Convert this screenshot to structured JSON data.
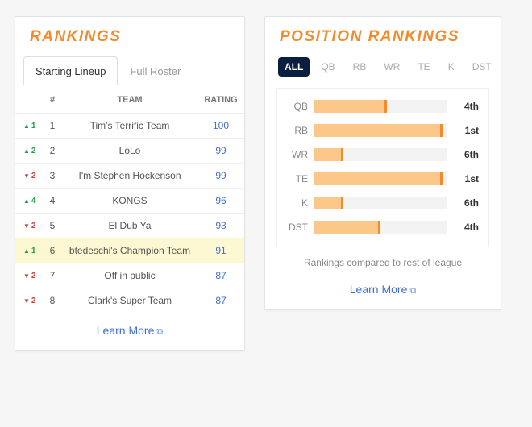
{
  "colors": {
    "accent_orange": "#f28b2b",
    "accent_orange_dark": "#e06a00",
    "link_blue": "#3f6fd8",
    "bar_fill": "#fbc88a",
    "bar_edge": "#f28b2b",
    "highlight_row": "#fdf8d2",
    "pos_active_bg": "#0a1e3f",
    "delta_up": "#1e9e4a",
    "delta_down": "#d23d3d"
  },
  "left": {
    "title": "RANKINGS",
    "tabs": [
      {
        "id": "starting",
        "label": "Starting Lineup",
        "active": true
      },
      {
        "id": "full",
        "label": "Full Roster",
        "active": false
      }
    ],
    "columns": {
      "rank": "#",
      "team": "TEAM",
      "rating": "RATING"
    },
    "rows": [
      {
        "dir": "up",
        "delta": "1",
        "rank": "1",
        "team": "Tim's Terrific Team",
        "rating": "100",
        "highlight": false
      },
      {
        "dir": "up",
        "delta": "2",
        "rank": "2",
        "team": "LoLo",
        "rating": "99",
        "highlight": false
      },
      {
        "dir": "down",
        "delta": "2",
        "rank": "3",
        "team": "I'm Stephen Hockenson",
        "rating": "99",
        "highlight": false
      },
      {
        "dir": "up",
        "delta": "4",
        "rank": "4",
        "team": "KONGS",
        "rating": "96",
        "highlight": false
      },
      {
        "dir": "down",
        "delta": "2",
        "rank": "5",
        "team": "El Dub Ya",
        "rating": "93",
        "highlight": false
      },
      {
        "dir": "up",
        "delta": "1",
        "rank": "6",
        "team": "btedeschi's Champion Team",
        "rating": "91",
        "highlight": true
      },
      {
        "dir": "down",
        "delta": "2",
        "rank": "7",
        "team": "Off in public",
        "rating": "87",
        "highlight": false
      },
      {
        "dir": "down",
        "delta": "2",
        "rank": "8",
        "team": "Clark's Super Team",
        "rating": "87",
        "highlight": false
      }
    ],
    "learn_more": "Learn More"
  },
  "right": {
    "title": "POSITION RANKINGS",
    "pos_tabs": [
      "ALL",
      "QB",
      "RB",
      "WR",
      "TE",
      "K",
      "DST"
    ],
    "active_tab": "ALL",
    "bars": {
      "type": "horizontal-bar",
      "max": 1.0,
      "fill_color": "#fbc88a",
      "edge_color": "#f28b2b",
      "track_color": "#f3f3f3",
      "label_fontsize": 12,
      "rows": [
        {
          "label": "QB",
          "value": 0.55,
          "rank_text": "4th"
        },
        {
          "label": "RB",
          "value": 0.97,
          "rank_text": "1st"
        },
        {
          "label": "WR",
          "value": 0.22,
          "rank_text": "6th"
        },
        {
          "label": "TE",
          "value": 0.97,
          "rank_text": "1st"
        },
        {
          "label": "K",
          "value": 0.22,
          "rank_text": "6th"
        },
        {
          "label": "DST",
          "value": 0.5,
          "rank_text": "4th"
        }
      ]
    },
    "caption": "Rankings compared to rest of league",
    "learn_more": "Learn More"
  }
}
